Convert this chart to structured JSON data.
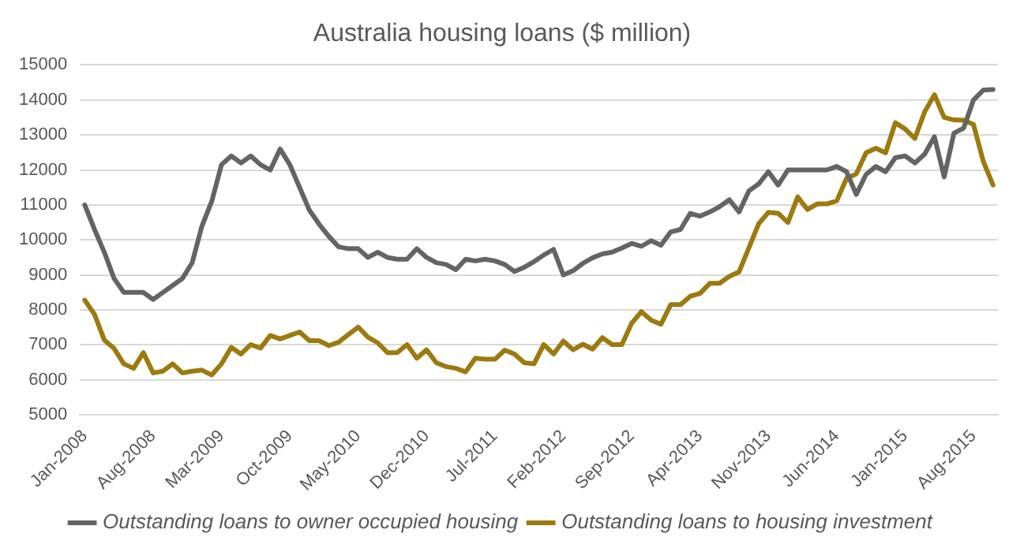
{
  "chart_data": {
    "type": "line",
    "title": "Australia housing loans ($ million)",
    "categories": [
      "Jan-2008",
      null,
      null,
      null,
      null,
      null,
      null,
      "Aug-2008",
      null,
      null,
      null,
      null,
      null,
      null,
      "Mar-2009",
      null,
      null,
      null,
      null,
      null,
      null,
      "Oct-2009",
      null,
      null,
      null,
      null,
      null,
      null,
      "May-2010",
      null,
      null,
      null,
      null,
      null,
      null,
      "Dec-2010",
      null,
      null,
      null,
      null,
      null,
      null,
      "Jul-2011",
      null,
      null,
      null,
      null,
      null,
      null,
      "Feb-2012",
      null,
      null,
      null,
      null,
      null,
      null,
      "Sep-2012",
      null,
      null,
      null,
      null,
      null,
      null,
      "Apr-2013",
      null,
      null,
      null,
      null,
      null,
      null,
      "Nov-2013",
      null,
      null,
      null,
      null,
      null,
      null,
      "Jun-2014",
      null,
      null,
      null,
      null,
      null,
      null,
      "Jan-2015",
      null,
      null,
      null,
      null,
      null,
      null,
      "Aug-2015",
      null,
      null
    ],
    "series": [
      {
        "name": "Outstanding loans to owner occupied housing",
        "color": "#646464",
        "values": [
          11000,
          10300,
          9650,
          8900,
          8500,
          8500,
          8500,
          8300,
          8500,
          8700,
          8900,
          9350,
          10400,
          11100,
          12150,
          12400,
          12200,
          12400,
          12150,
          12000,
          12600,
          12150,
          11500,
          10850,
          10450,
          10100,
          9800,
          9750,
          9750,
          9500,
          9650,
          9500,
          9450,
          9450,
          9750,
          9500,
          9350,
          9300,
          9150,
          9450,
          9400,
          9450,
          9400,
          9300,
          9100,
          9220,
          9380,
          9570,
          9730,
          9000,
          9120,
          9330,
          9490,
          9600,
          9650,
          9770,
          9900,
          9820,
          9980,
          9850,
          10230,
          10300,
          10760,
          10680,
          10800,
          10950,
          11150,
          10800,
          11400,
          11600,
          11950,
          11570,
          12000,
          12000,
          12000,
          12000,
          12000,
          12100,
          11950,
          11300,
          11870,
          12100,
          11950,
          12350,
          12400,
          12200,
          12450,
          12950,
          11800,
          13050,
          13200,
          14000,
          14280,
          14300
        ]
      },
      {
        "name": "Outstanding loans to housing investment",
        "color": "#9c7a0e",
        "values": [
          8280,
          7870,
          7140,
          6900,
          6460,
          6330,
          6780,
          6200,
          6250,
          6460,
          6200,
          6250,
          6280,
          6140,
          6460,
          6930,
          6740,
          7010,
          6910,
          7270,
          7170,
          7270,
          7370,
          7120,
          7120,
          6980,
          7080,
          7300,
          7510,
          7220,
          7060,
          6780,
          6780,
          7010,
          6620,
          6860,
          6490,
          6380,
          6330,
          6230,
          6620,
          6590,
          6590,
          6850,
          6740,
          6490,
          6460,
          7010,
          6740,
          7110,
          6860,
          7020,
          6880,
          7210,
          7010,
          7010,
          7620,
          7950,
          7710,
          7590,
          8150,
          8150,
          8390,
          8470,
          8760,
          8760,
          8960,
          9090,
          9770,
          10460,
          10790,
          10760,
          10500,
          11230,
          10870,
          11030,
          11030,
          11120,
          11760,
          11890,
          12490,
          12620,
          12490,
          13350,
          13170,
          12900,
          13660,
          14150,
          13500,
          13430,
          13420,
          13300,
          12250,
          11570
        ]
      }
    ],
    "ylim": [
      5000,
      15000
    ],
    "yticks": [
      5000,
      6000,
      7000,
      8000,
      9000,
      10000,
      11000,
      12000,
      13000,
      14000,
      15000
    ],
    "grid": "y",
    "legend": "bottom",
    "marker": "none",
    "line_style": "solid"
  }
}
